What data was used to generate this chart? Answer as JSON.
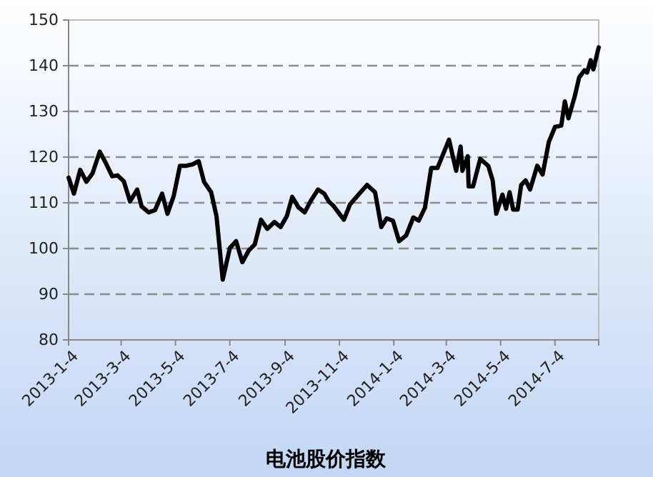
{
  "chart_data": {
    "type": "line",
    "title": "电池股价指数",
    "x": [
      "2013-01-04",
      "2013-01-10",
      "2013-01-17",
      "2013-01-24",
      "2013-01-31",
      "2013-02-08",
      "2013-02-15",
      "2013-02-22",
      "2013-02-28",
      "2013-03-07",
      "2013-03-14",
      "2013-03-22",
      "2013-03-27",
      "2013-04-04",
      "2013-04-11",
      "2013-04-19",
      "2013-04-25",
      "2013-05-02",
      "2013-05-09",
      "2013-05-16",
      "2013-05-23",
      "2013-05-30",
      "2013-06-05",
      "2013-06-13",
      "2013-06-19",
      "2013-06-26",
      "2013-07-04",
      "2013-07-11",
      "2013-07-18",
      "2013-07-25",
      "2013-08-01",
      "2013-08-08",
      "2013-08-15",
      "2013-08-23",
      "2013-08-30",
      "2013-09-06",
      "2013-09-12",
      "2013-09-19",
      "2013-09-26",
      "2013-10-03",
      "2013-10-11",
      "2013-10-18",
      "2013-10-23",
      "2013-10-28",
      "2013-11-09",
      "2013-11-16",
      "2013-12-05",
      "2013-12-14",
      "2013-12-21",
      "2013-12-27",
      "2014-01-03",
      "2014-01-10",
      "2014-01-18",
      "2014-01-26",
      "2014-02-01",
      "2014-02-08",
      "2014-02-15",
      "2014-02-22",
      "2014-03-07",
      "2014-03-15",
      "2014-03-20",
      "2014-03-22",
      "2014-03-28",
      "2014-03-29",
      "2014-04-03",
      "2014-04-11",
      "2014-04-20",
      "2014-04-25",
      "2014-04-29",
      "2014-05-06",
      "2014-05-10",
      "2014-05-14",
      "2014-05-18",
      "2014-05-23",
      "2014-05-27",
      "2014-06-01",
      "2014-06-06",
      "2014-06-14",
      "2014-06-20",
      "2014-06-27",
      "2014-07-04",
      "2014-07-11",
      "2014-07-15",
      "2014-07-19",
      "2014-07-26",
      "2014-07-31",
      "2014-08-06",
      "2014-08-09",
      "2014-08-13",
      "2014-08-16",
      "2014-08-22"
    ],
    "series": [
      {
        "color": "#000000",
        "values": [
          115.5,
          112.0,
          117.2,
          114.6,
          116.5,
          121.2,
          118.6,
          115.8,
          116.0,
          114.7,
          110.3,
          112.9,
          109.2,
          107.9,
          108.4,
          112.0,
          107.6,
          111.5,
          118.1,
          118.1,
          118.4,
          119.1,
          114.6,
          112.3,
          107.1,
          93.2,
          100.1,
          101.6,
          97.0,
          99.5,
          100.9,
          106.3,
          104.3,
          105.8,
          104.7,
          107.1,
          111.3,
          109.0,
          107.9,
          110.5,
          112.9,
          112.0,
          110.3,
          109.4,
          106.3,
          109.7,
          113.9,
          112.3,
          104.7,
          106.6,
          106.1,
          101.6,
          102.9,
          106.8,
          106.1,
          108.9,
          117.6,
          117.6,
          123.8,
          117.0,
          122.3,
          117.0,
          120.2,
          113.6,
          113.6,
          119.6,
          118.1,
          114.9,
          107.6,
          111.8,
          108.7,
          112.3,
          108.5,
          108.5,
          113.9,
          114.9,
          112.9,
          118.1,
          116.2,
          123.3,
          126.6,
          126.9,
          132.2,
          128.5,
          133.2,
          137.4,
          139.0,
          138.5,
          141.2,
          139.2,
          144.0
        ]
      }
    ],
    "xlim": [
      "2013-01-04",
      "2014-08-22"
    ],
    "xticks": [
      {
        "value": "2013-01-04",
        "label": "2013-1-4"
      },
      {
        "value": "2013-03-04",
        "label": "2013-3-4"
      },
      {
        "value": "2013-05-04",
        "label": "2013-5-4"
      },
      {
        "value": "2013-07-04",
        "label": "2013-7-4"
      },
      {
        "value": "2013-09-04",
        "label": "2013-9-4"
      },
      {
        "value": "2013-11-04",
        "label": "2013-11-4"
      },
      {
        "value": "2014-01-04",
        "label": "2014-1-4"
      },
      {
        "value": "2014-03-04",
        "label": "2014-3-4"
      },
      {
        "value": "2014-05-04",
        "label": "2014-5-4"
      },
      {
        "value": "2014-07-04",
        "label": "2014-7-4"
      }
    ],
    "ylim": [
      80,
      150
    ],
    "yticks": [
      80,
      90,
      100,
      110,
      120,
      130,
      140,
      150
    ],
    "grid": "y",
    "marker": "none",
    "line_style": "solid"
  }
}
